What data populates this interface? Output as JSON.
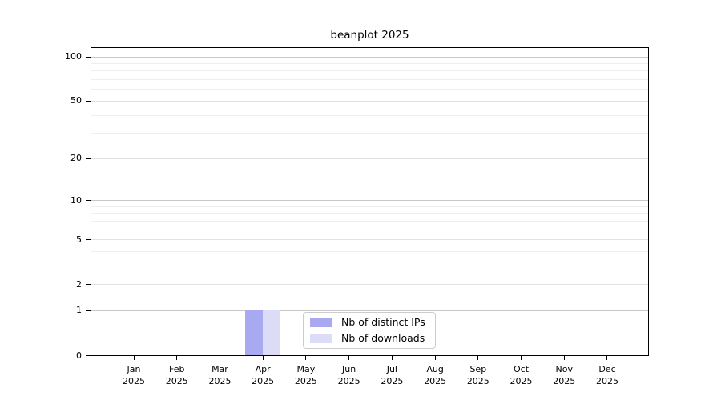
{
  "window": {
    "background": "#ffffff"
  },
  "chart_data": {
    "type": "bar",
    "title": "beanplot 2025",
    "categories": [
      "Jan 2025",
      "Feb 2025",
      "Mar 2025",
      "Apr 2025",
      "May 2025",
      "Jun 2025",
      "Jul 2025",
      "Aug 2025",
      "Sep 2025",
      "Oct 2025",
      "Nov 2025",
      "Dec 2025"
    ],
    "month_labels": [
      "Jan",
      "Feb",
      "Mar",
      "Apr",
      "May",
      "Jun",
      "Jul",
      "Aug",
      "Sep",
      "Oct",
      "Nov",
      "Dec"
    ],
    "year_label": "2025",
    "xlabel": "",
    "ylabel": "",
    "y_axis": {
      "scale": "log1p",
      "tick_values": [
        0,
        1,
        2,
        5,
        10,
        20,
        50,
        100
      ],
      "minor_gridline_values": [
        3,
        4,
        6,
        7,
        8,
        9,
        30,
        40,
        60,
        70,
        80,
        90
      ],
      "decade_gridline_values": [
        1,
        10,
        100
      ],
      "range": [
        0,
        117
      ],
      "grid": true
    },
    "series": [
      {
        "name": "Nb of distinct IPs",
        "color": "#a9a9f1",
        "values": [
          0,
          0,
          0,
          1,
          0,
          0,
          0,
          0,
          0,
          0,
          0,
          0
        ]
      },
      {
        "name": "Nb of downloads",
        "color": "#dcdcf7",
        "values": [
          0,
          0,
          0,
          1,
          0,
          0,
          0,
          0,
          0,
          0,
          0,
          0
        ]
      }
    ],
    "legend": {
      "position": "bottom-center",
      "entries": [
        "Nb of distinct IPs",
        "Nb of downloads"
      ]
    }
  },
  "colors": {
    "decade_gridline": "#c8c8c8",
    "major_gridline": "#e2e2e2",
    "minor_gridline": "#eeeeee",
    "axis": "#000000",
    "legend_border": "#cccccc",
    "text": "#000000"
  }
}
